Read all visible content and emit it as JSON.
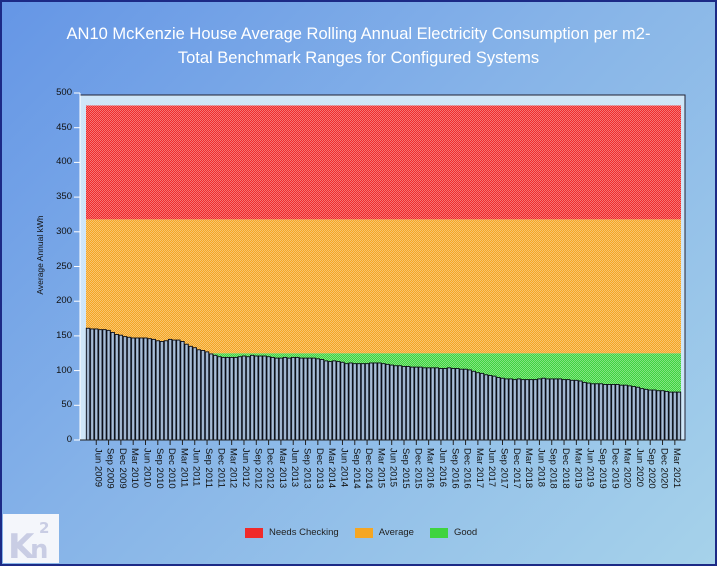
{
  "chart_data": {
    "type": "bar",
    "title": "AN10 McKenzie House Average Rolling Annual Electricity Consumption per m2-",
    "subtitle": "Total Benchmark Ranges for Configured Systems",
    "ylabel": "Average Annual kWh",
    "xlabel": "",
    "ylim": [
      0,
      500
    ],
    "yticks": [
      0,
      50,
      100,
      150,
      200,
      250,
      300,
      350,
      400,
      450,
      500
    ],
    "grid": false,
    "legend_position": "bottom",
    "first_month": "Apr 2009",
    "x_tick_labels": [
      "Jun 2009",
      "Sep 2009",
      "Dec 2009",
      "Mar 2010",
      "Jun 2010",
      "Sep 2010",
      "Dec 2010",
      "Mar 2011",
      "Jun 2011",
      "Sep 2011",
      "Dec 2011",
      "Mar 2012",
      "Jun 2012",
      "Sep 2012",
      "Dec 2012",
      "Mar 2013",
      "Jun 2013",
      "Sep 2013",
      "Dec 2013",
      "Mar 2014",
      "Jun 2014",
      "Sep 2014",
      "Dec 2014",
      "Mar 2015",
      "Jun 2015",
      "Sep 2015",
      "Dec 2015",
      "Mar 2016",
      "Jun 2016",
      "Sep 2016",
      "Dec 2016",
      "Mar 2017",
      "Jun 2017",
      "Sep 2017",
      "Dec 2017",
      "Mar 2018",
      "Jun 2018",
      "Sep 2018",
      "Dec 2018",
      "Mar 2019",
      "Jun 2019",
      "Sep 2019",
      "Dec 2019",
      "Mar 2020",
      "Jun 2020",
      "Sep 2020",
      "Dec 2020",
      "Mar 2021"
    ],
    "values": [
      161,
      160,
      160,
      159,
      159,
      158,
      155,
      152,
      151,
      149,
      148,
      147,
      147,
      147,
      147,
      146,
      145,
      143,
      142,
      143,
      145,
      144,
      144,
      142,
      138,
      135,
      133,
      130,
      129,
      127,
      124,
      122,
      120,
      119,
      119,
      119,
      119,
      120,
      121,
      120,
      122,
      121,
      121,
      121,
      120,
      119,
      118,
      118,
      119,
      118,
      119,
      119,
      118,
      118,
      118,
      118,
      117,
      116,
      114,
      113,
      114,
      113,
      112,
      110,
      111,
      110,
      110,
      110,
      110,
      111,
      111,
      111,
      110,
      109,
      108,
      107,
      107,
      106,
      106,
      105,
      105,
      105,
      104,
      104,
      104,
      104,
      103,
      103,
      104,
      103,
      103,
      102,
      102,
      101,
      99,
      97,
      96,
      94,
      93,
      92,
      90,
      89,
      88,
      88,
      87,
      88,
      87,
      87,
      87,
      87,
      88,
      89,
      88,
      88,
      88,
      88,
      87,
      87,
      86,
      86,
      85,
      83,
      82,
      81,
      81,
      81,
      80,
      80,
      80,
      80,
      79,
      79,
      78,
      77,
      76,
      74,
      73,
      72,
      72,
      71,
      71,
      70,
      69,
      69,
      69
    ],
    "bands": [
      {
        "name": "Good",
        "from": 0,
        "to": 125,
        "color": "#3fd43f"
      },
      {
        "name": "Average",
        "from": 125,
        "to": 318,
        "color": "#f5a623"
      },
      {
        "name": "Needs Checking",
        "from": 318,
        "to": 482,
        "color": "#f02a2a"
      }
    ],
    "bar_color": "#8ea6c6"
  },
  "logo": {
    "text": "Kn",
    "superscript": "2"
  }
}
